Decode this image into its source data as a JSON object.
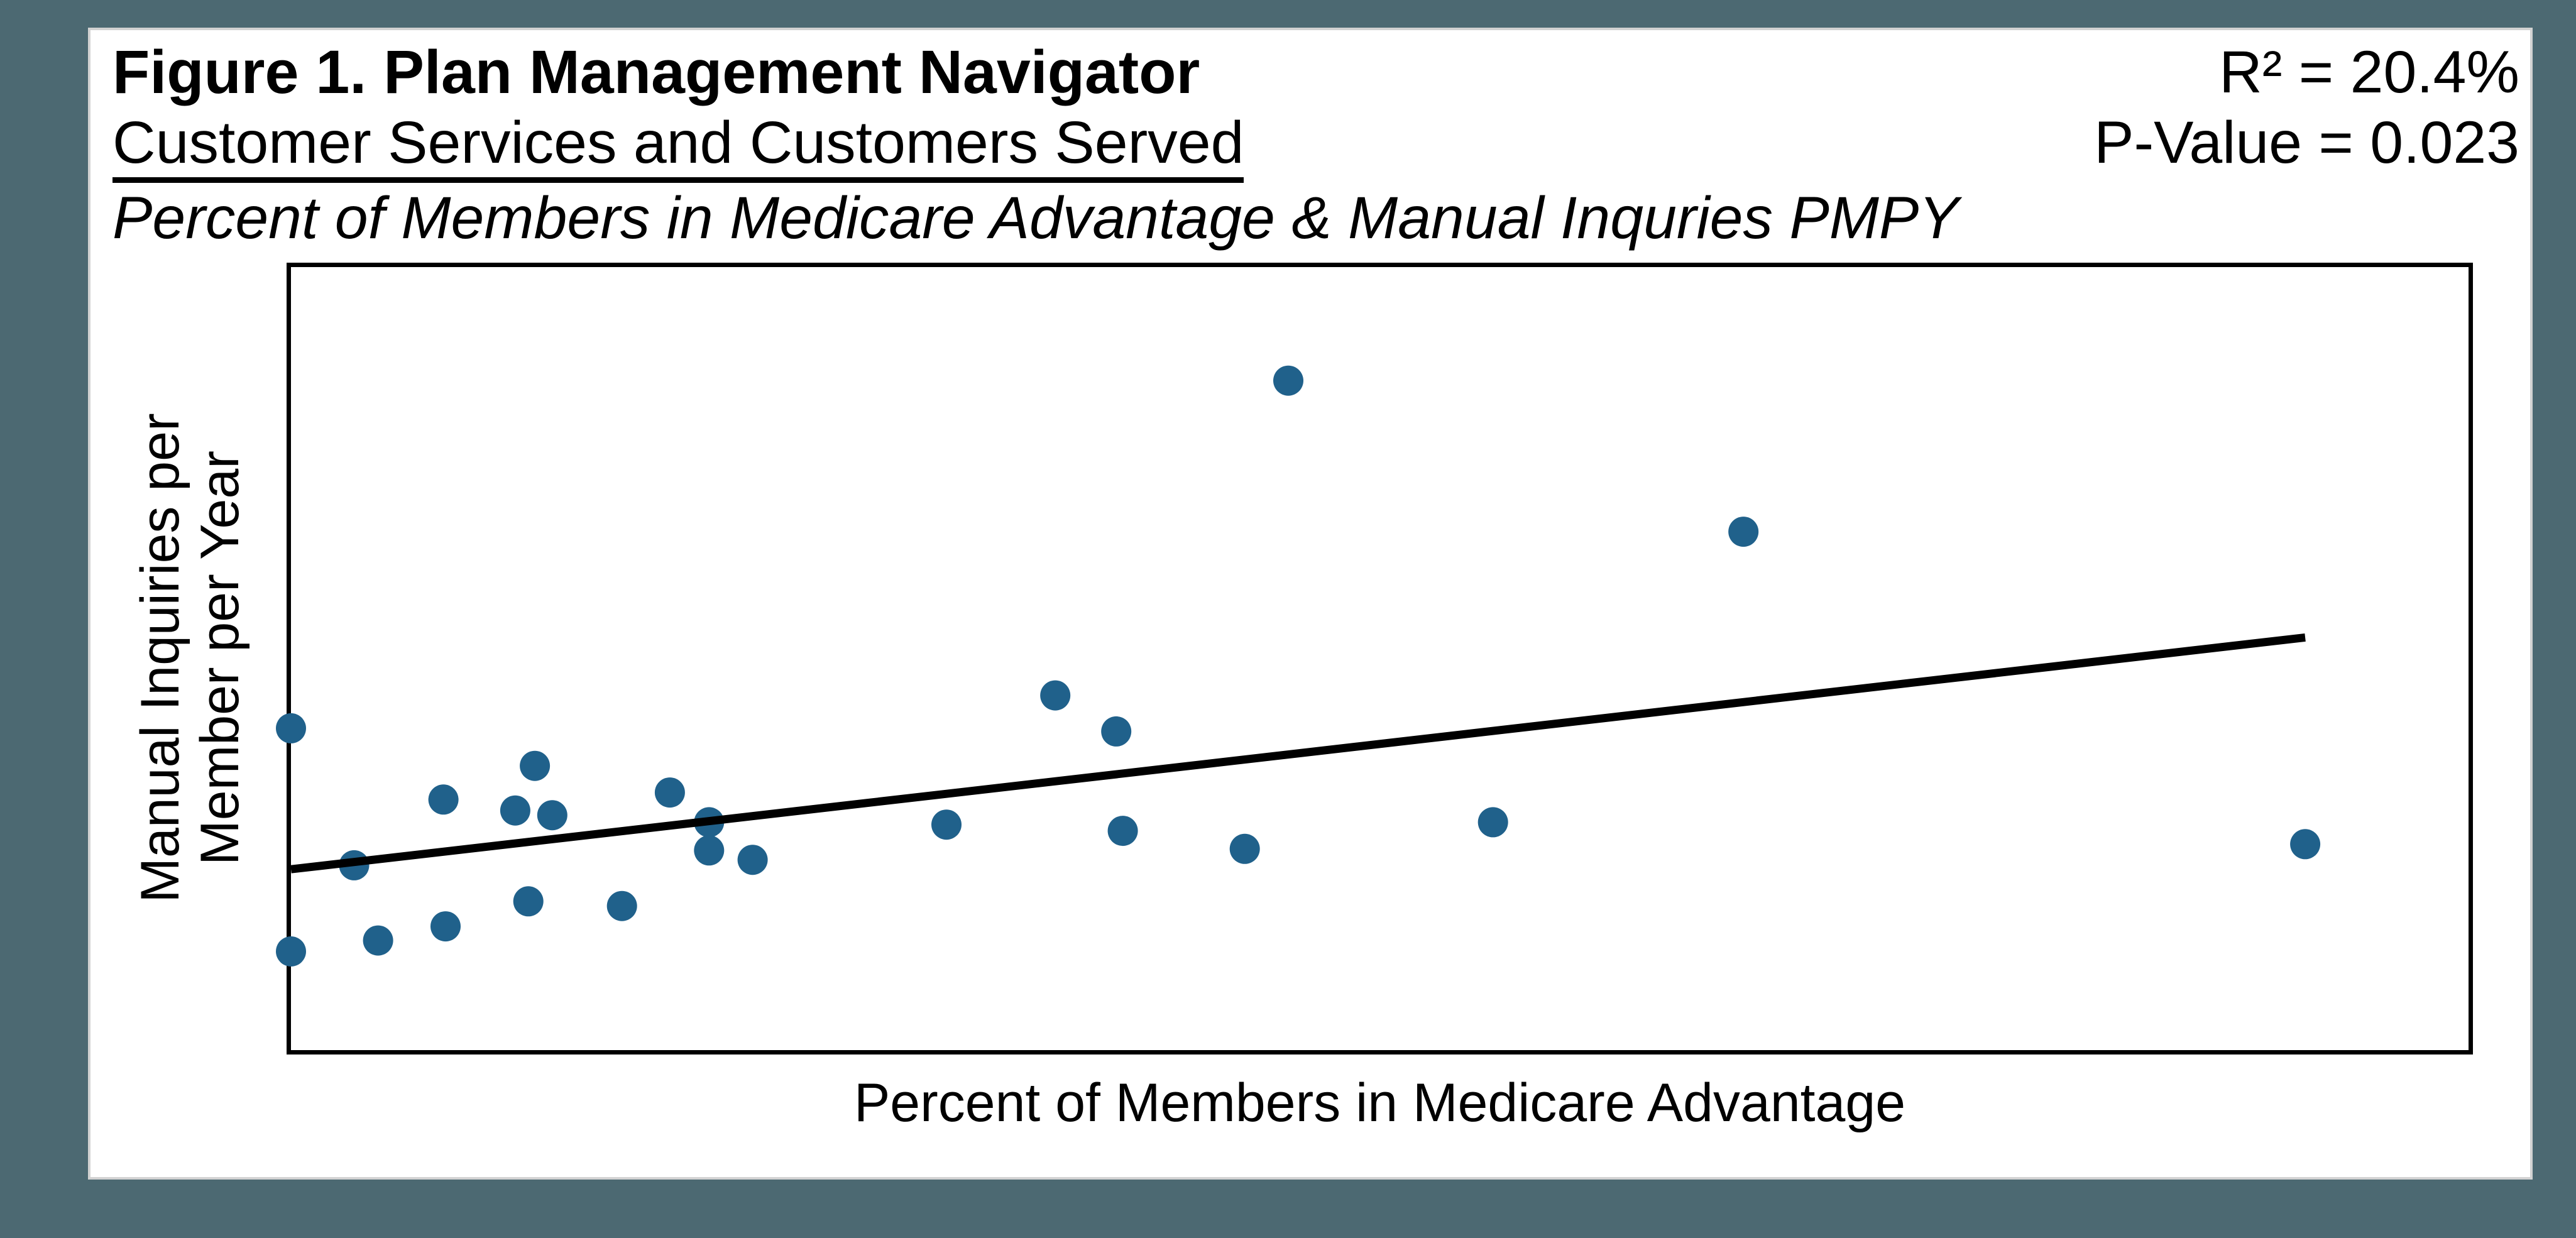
{
  "canvas": {
    "outer_background": "#4C6972",
    "card_background": "#FFFFFF",
    "card_border": "#D2D2D2"
  },
  "chart_data": {
    "type": "scatter",
    "title": "Figure 1. Plan Management Navigator",
    "subtitle_underlined": "Customer Services and Customers Served",
    "subtitle_italic": "Percent of Members in Medicare Advantage & Manual Inquries PMPY",
    "stats": {
      "r_squared_label": "R² = 20.4%",
      "p_value_label": "P-Value = 0.023",
      "r_squared_pct": 20.4,
      "p_value": 0.023
    },
    "xlabel": "Percent of Members in Medicare Advantage",
    "ylabel_lines": [
      "Manual Inquiries per",
      "Member per Year"
    ],
    "axis_ticks_visible": false,
    "grid": false,
    "legend": "none",
    "point_color": "#20618B",
    "trendline_color": "#000000",
    "points_frac_note": "x_frac from plot left edge (0-1), y_frac from plot bottom (0-1); axes carry no numeric tick labels in the figure",
    "points_frac": [
      [
        0.0,
        0.411
      ],
      [
        0.0,
        0.126
      ],
      [
        0.029,
        0.236
      ],
      [
        0.04,
        0.14
      ],
      [
        0.07,
        0.32
      ],
      [
        0.071,
        0.158
      ],
      [
        0.103,
        0.306
      ],
      [
        0.112,
        0.363
      ],
      [
        0.109,
        0.19
      ],
      [
        0.12,
        0.3
      ],
      [
        0.152,
        0.184
      ],
      [
        0.174,
        0.329
      ],
      [
        0.192,
        0.291
      ],
      [
        0.192,
        0.255
      ],
      [
        0.212,
        0.243
      ],
      [
        0.301,
        0.288
      ],
      [
        0.351,
        0.453
      ],
      [
        0.379,
        0.407
      ],
      [
        0.382,
        0.28
      ],
      [
        0.438,
        0.257
      ],
      [
        0.458,
        0.855
      ],
      [
        0.552,
        0.291
      ],
      [
        0.667,
        0.662
      ],
      [
        0.925,
        0.263
      ]
    ],
    "trendline_frac": {
      "x1": 0.0,
      "y1": 0.231,
      "x2": 0.925,
      "y2": 0.527
    }
  }
}
